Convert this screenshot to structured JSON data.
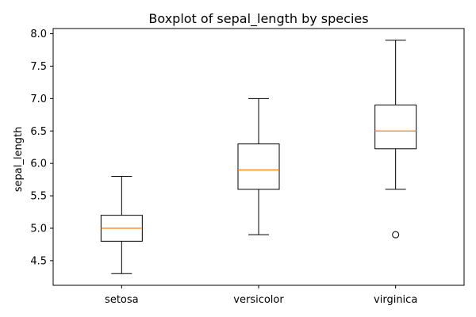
{
  "chart_data": {
    "type": "boxplot",
    "title": "Boxplot of sepal_length by species",
    "xlabel": "",
    "ylabel": "sepal_length",
    "ylim": [
      4.12,
      8.08
    ],
    "yticks": [
      "4.5",
      "5.0",
      "5.5",
      "6.0",
      "6.5",
      "7.0",
      "7.5",
      "8.0"
    ],
    "grid": false,
    "categories": [
      "setosa",
      "versicolor",
      "virginica"
    ],
    "boxes": [
      {
        "category": "setosa",
        "whisker_low": 4.3,
        "q1": 4.8,
        "median": 5.0,
        "q3": 5.2,
        "whisker_high": 5.8,
        "outliers": []
      },
      {
        "category": "versicolor",
        "whisker_low": 4.9,
        "q1": 5.6,
        "median": 5.9,
        "q3": 6.3,
        "whisker_high": 7.0,
        "outliers": []
      },
      {
        "category": "virginica",
        "whisker_low": 5.6,
        "q1": 6.225,
        "median": 6.5,
        "q3": 6.9,
        "whisker_high": 7.9,
        "outliers": [
          4.9
        ]
      }
    ],
    "colors": {
      "box": "#000000",
      "median": "#ff7f0e",
      "outlier": "#000000"
    }
  }
}
